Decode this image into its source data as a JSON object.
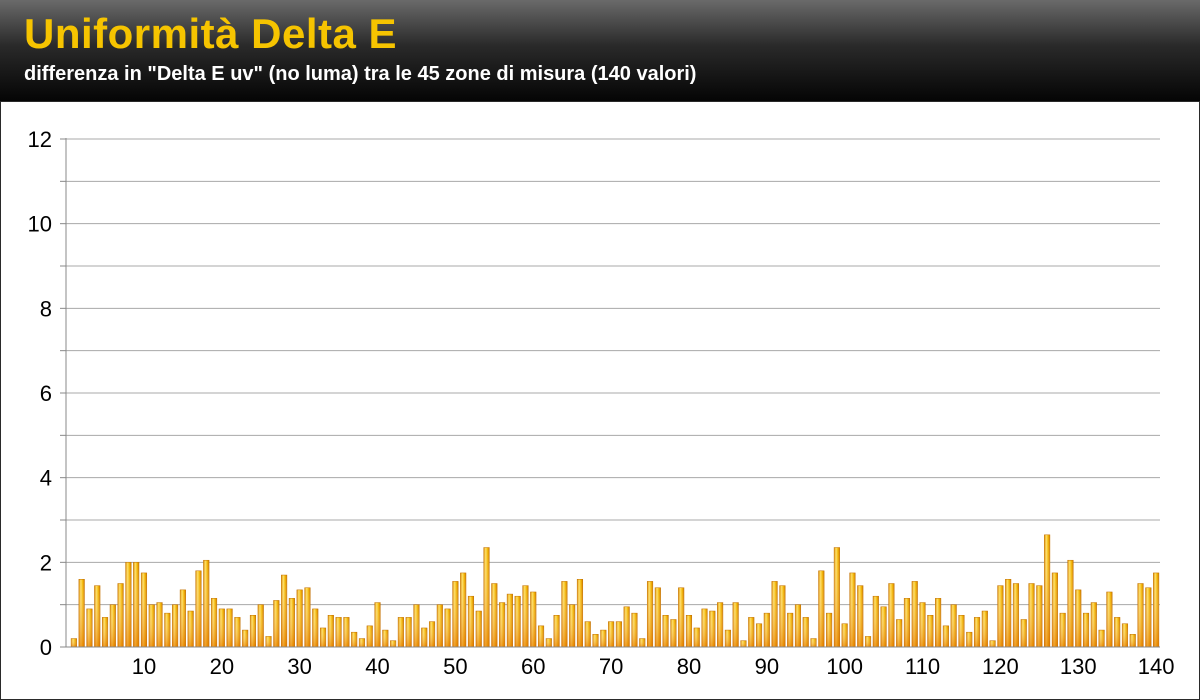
{
  "header": {
    "title": "Uniformità Delta E",
    "subtitle": "differenza in \"Delta E uv\" (no luma) tra le 45 zone di misura (140 valori)"
  },
  "colors": {
    "title": "#f6c400",
    "bar_light": "#ffe266",
    "bar_mid": "#f2b400",
    "bar_dark": "#d97e00",
    "grid": "#a0a0a0"
  },
  "chart_data": {
    "type": "bar",
    "title": "Uniformità Delta E",
    "subtitle": "differenza in \"Delta E uv\" (no luma) tra le 45 zone di misura (140 valori)",
    "xlabel": "",
    "ylabel": "",
    "ylim": [
      0,
      12
    ],
    "yticks": [
      0,
      2,
      4,
      6,
      8,
      10,
      12
    ],
    "xlim": [
      1,
      140
    ],
    "xticks": [
      10,
      20,
      30,
      40,
      50,
      60,
      70,
      80,
      90,
      100,
      110,
      120,
      130,
      140
    ],
    "grid": true,
    "legend": "none",
    "x": [
      1,
      2,
      3,
      4,
      5,
      6,
      7,
      8,
      9,
      10,
      11,
      12,
      13,
      14,
      15,
      16,
      17,
      18,
      19,
      20,
      21,
      22,
      23,
      24,
      25,
      26,
      27,
      28,
      29,
      30,
      31,
      32,
      33,
      34,
      35,
      36,
      37,
      38,
      39,
      40,
      41,
      42,
      43,
      44,
      45,
      46,
      47,
      48,
      49,
      50,
      51,
      52,
      53,
      54,
      55,
      56,
      57,
      58,
      59,
      60,
      61,
      62,
      63,
      64,
      65,
      66,
      67,
      68,
      69,
      70,
      71,
      72,
      73,
      74,
      75,
      76,
      77,
      78,
      79,
      80,
      81,
      82,
      83,
      84,
      85,
      86,
      87,
      88,
      89,
      90,
      91,
      92,
      93,
      94,
      95,
      96,
      97,
      98,
      99,
      100,
      101,
      102,
      103,
      104,
      105,
      106,
      107,
      108,
      109,
      110,
      111,
      112,
      113,
      114,
      115,
      116,
      117,
      118,
      119,
      120,
      121,
      122,
      123,
      124,
      125,
      126,
      127,
      128,
      129,
      130,
      131,
      132,
      133,
      134,
      135,
      136,
      137,
      138,
      139,
      140
    ],
    "values": [
      0.2,
      1.6,
      0.9,
      1.45,
      0.7,
      1.0,
      1.5,
      2.0,
      2.0,
      1.75,
      1.0,
      1.05,
      0.8,
      1.0,
      1.35,
      0.85,
      1.8,
      2.05,
      1.15,
      0.9,
      0.9,
      0.7,
      0.4,
      0.75,
      1.0,
      0.25,
      1.1,
      1.7,
      1.15,
      1.35,
      1.4,
      0.9,
      0.45,
      0.75,
      0.7,
      0.7,
      0.35,
      0.2,
      0.5,
      1.05,
      0.4,
      0.15,
      0.7,
      0.7,
      1.0,
      0.45,
      0.6,
      1.0,
      0.9,
      1.55,
      1.75,
      1.2,
      0.85,
      2.35,
      1.5,
      1.05,
      1.25,
      1.2,
      1.45,
      1.3,
      0.5,
      0.2,
      0.75,
      1.55,
      1.0,
      1.6,
      0.6,
      0.3,
      0.4,
      0.6,
      0.6,
      0.95,
      0.8,
      0.2,
      1.55,
      1.4,
      0.75,
      0.65,
      1.4,
      0.75,
      0.45,
      0.9,
      0.85,
      1.05,
      0.4,
      1.05,
      0.15,
      0.7,
      0.55,
      0.8,
      1.55,
      1.45,
      0.8,
      1.0,
      0.7,
      0.2,
      1.8,
      0.8,
      2.35,
      0.55,
      1.75,
      1.45,
      0.25,
      1.2,
      0.95,
      1.5,
      0.65,
      1.15,
      1.55,
      1.05,
      0.75,
      1.15,
      0.5,
      1.0,
      0.75,
      0.35,
      0.7,
      0.85,
      0.15,
      1.45,
      1.6,
      1.5,
      0.65,
      1.5,
      1.45,
      2.65,
      1.75,
      0.8,
      2.05,
      1.35,
      0.8,
      1.05,
      0.4,
      1.3,
      0.7,
      0.55,
      0.3,
      1.5,
      1.4,
      1.75
    ]
  }
}
